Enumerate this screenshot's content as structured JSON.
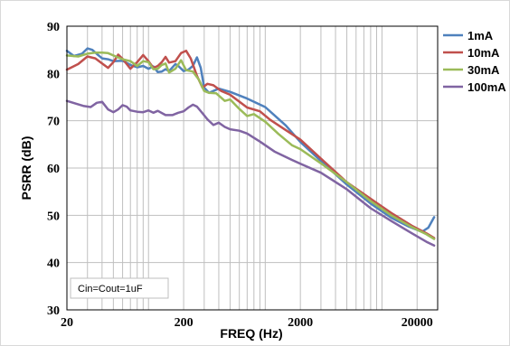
{
  "chart_data": {
    "type": "line",
    "xlabel": "FREQ (Hz)",
    "ylabel": "PSRR (dB)",
    "x_scale": "log",
    "xlim": [
      20,
      30000
    ],
    "ylim": [
      30,
      90
    ],
    "x_ticks": [
      20,
      200,
      2000,
      20000
    ],
    "x_tick_labels": [
      "20",
      "200",
      "2000",
      "20000"
    ],
    "y_ticks": [
      30,
      40,
      50,
      60,
      70,
      80,
      90
    ],
    "y_tick_labels": [
      "30",
      "40",
      "50",
      "60",
      "70",
      "80",
      "90"
    ],
    "grid": true,
    "legend_position": "right",
    "annotation": "Cin=Cout=1uF",
    "series": [
      {
        "name": "1mA",
        "color": "#4F81BD",
        "points": [
          [
            20,
            84.8
          ],
          [
            23,
            83.7
          ],
          [
            27,
            84.2
          ],
          [
            30,
            85.3
          ],
          [
            33,
            85.0
          ],
          [
            37,
            83.9
          ],
          [
            40,
            83.2
          ],
          [
            45,
            83.0
          ],
          [
            50,
            82.6
          ],
          [
            60,
            82.7
          ],
          [
            70,
            81.8
          ],
          [
            80,
            81.3
          ],
          [
            90,
            81.6
          ],
          [
            100,
            81.0
          ],
          [
            110,
            81.5
          ],
          [
            120,
            80.3
          ],
          [
            130,
            80.4
          ],
          [
            140,
            80.9
          ],
          [
            150,
            80.5
          ],
          [
            170,
            82.0
          ],
          [
            180,
            81.6
          ],
          [
            200,
            80.5
          ],
          [
            220,
            80.8
          ],
          [
            240,
            81.6
          ],
          [
            260,
            83.4
          ],
          [
            280,
            81.2
          ],
          [
            300,
            77.0
          ],
          [
            330,
            75.9
          ],
          [
            360,
            76.3
          ],
          [
            400,
            76.8
          ],
          [
            500,
            76.1
          ],
          [
            700,
            74.7
          ],
          [
            1000,
            72.9
          ],
          [
            1500,
            69.0
          ],
          [
            2000,
            65.5
          ],
          [
            3000,
            61.5
          ],
          [
            5000,
            56.5
          ],
          [
            8000,
            52.5
          ],
          [
            12000,
            49.5
          ],
          [
            17000,
            47.6
          ],
          [
            22000,
            46.5
          ],
          [
            25000,
            47.4
          ],
          [
            28000,
            49.6
          ]
        ]
      },
      {
        "name": "10mA",
        "color": "#C0504D",
        "points": [
          [
            20,
            80.8
          ],
          [
            25,
            82.0
          ],
          [
            30,
            83.6
          ],
          [
            35,
            83.2
          ],
          [
            40,
            82.1
          ],
          [
            45,
            81.2
          ],
          [
            50,
            82.4
          ],
          [
            55,
            84.0
          ],
          [
            60,
            83.1
          ],
          [
            70,
            81.0
          ],
          [
            80,
            82.4
          ],
          [
            90,
            83.9
          ],
          [
            100,
            82.6
          ],
          [
            110,
            81.2
          ],
          [
            120,
            81.6
          ],
          [
            130,
            82.4
          ],
          [
            140,
            83.5
          ],
          [
            150,
            82.3
          ],
          [
            170,
            82.6
          ],
          [
            190,
            84.3
          ],
          [
            210,
            84.8
          ],
          [
            230,
            83.2
          ],
          [
            260,
            79.5
          ],
          [
            290,
            77.0
          ],
          [
            320,
            77.8
          ],
          [
            360,
            77.5
          ],
          [
            420,
            76.3
          ],
          [
            500,
            75.5
          ],
          [
            700,
            72.8
          ],
          [
            900,
            72.0
          ],
          [
            1100,
            70.2
          ],
          [
            1500,
            68.0
          ],
          [
            2000,
            66.0
          ],
          [
            3000,
            62.0
          ],
          [
            5000,
            57.0
          ],
          [
            8000,
            53.5
          ],
          [
            12000,
            50.5
          ],
          [
            18000,
            47.8
          ],
          [
            24000,
            46.2
          ],
          [
            28000,
            45.2
          ]
        ]
      },
      {
        "name": "30mA",
        "color": "#9BBB59",
        "points": [
          [
            20,
            83.8
          ],
          [
            25,
            83.6
          ],
          [
            30,
            84.2
          ],
          [
            35,
            84.4
          ],
          [
            40,
            84.4
          ],
          [
            45,
            84.3
          ],
          [
            50,
            83.8
          ],
          [
            60,
            83.0
          ],
          [
            70,
            82.6
          ],
          [
            80,
            81.6
          ],
          [
            90,
            82.6
          ],
          [
            100,
            82.4
          ],
          [
            110,
            80.9
          ],
          [
            120,
            81.0
          ],
          [
            130,
            81.8
          ],
          [
            140,
            82.1
          ],
          [
            150,
            80.2
          ],
          [
            170,
            81.0
          ],
          [
            190,
            82.8
          ],
          [
            210,
            80.7
          ],
          [
            240,
            80.4
          ],
          [
            270,
            78.7
          ],
          [
            300,
            76.3
          ],
          [
            330,
            75.9
          ],
          [
            380,
            75.8
          ],
          [
            450,
            74.2
          ],
          [
            500,
            74.5
          ],
          [
            600,
            72.5
          ],
          [
            700,
            71.0
          ],
          [
            800,
            71.4
          ],
          [
            1000,
            69.8
          ],
          [
            1300,
            67.2
          ],
          [
            1700,
            64.8
          ],
          [
            2000,
            64.0
          ],
          [
            3000,
            61.0
          ],
          [
            5000,
            57.0
          ],
          [
            8000,
            53.0
          ],
          [
            12000,
            50.0
          ],
          [
            18000,
            47.5
          ],
          [
            24000,
            46.0
          ],
          [
            28000,
            45.0
          ]
        ]
      },
      {
        "name": "100mA",
        "color": "#8064A2",
        "points": [
          [
            20,
            74.2
          ],
          [
            24,
            73.6
          ],
          [
            28,
            73.1
          ],
          [
            32,
            72.9
          ],
          [
            36,
            73.8
          ],
          [
            40,
            74.0
          ],
          [
            45,
            72.4
          ],
          [
            50,
            71.8
          ],
          [
            55,
            72.4
          ],
          [
            60,
            73.3
          ],
          [
            65,
            73.0
          ],
          [
            70,
            72.2
          ],
          [
            80,
            71.9
          ],
          [
            90,
            71.8
          ],
          [
            100,
            72.2
          ],
          [
            110,
            71.7
          ],
          [
            120,
            72.1
          ],
          [
            140,
            71.2
          ],
          [
            160,
            71.2
          ],
          [
            180,
            71.7
          ],
          [
            200,
            72.0
          ],
          [
            220,
            72.8
          ],
          [
            240,
            73.4
          ],
          [
            260,
            73.0
          ],
          [
            290,
            71.6
          ],
          [
            320,
            70.3
          ],
          [
            360,
            69.1
          ],
          [
            400,
            69.6
          ],
          [
            450,
            68.7
          ],
          [
            500,
            68.2
          ],
          [
            600,
            67.9
          ],
          [
            700,
            67.3
          ],
          [
            900,
            65.6
          ],
          [
            1200,
            63.5
          ],
          [
            1700,
            61.7
          ],
          [
            2000,
            60.9
          ],
          [
            3000,
            59.0
          ],
          [
            5000,
            55.5
          ],
          [
            8000,
            51.5
          ],
          [
            12000,
            48.8
          ],
          [
            18000,
            46.2
          ],
          [
            24000,
            44.4
          ],
          [
            28000,
            43.6
          ]
        ]
      }
    ]
  }
}
